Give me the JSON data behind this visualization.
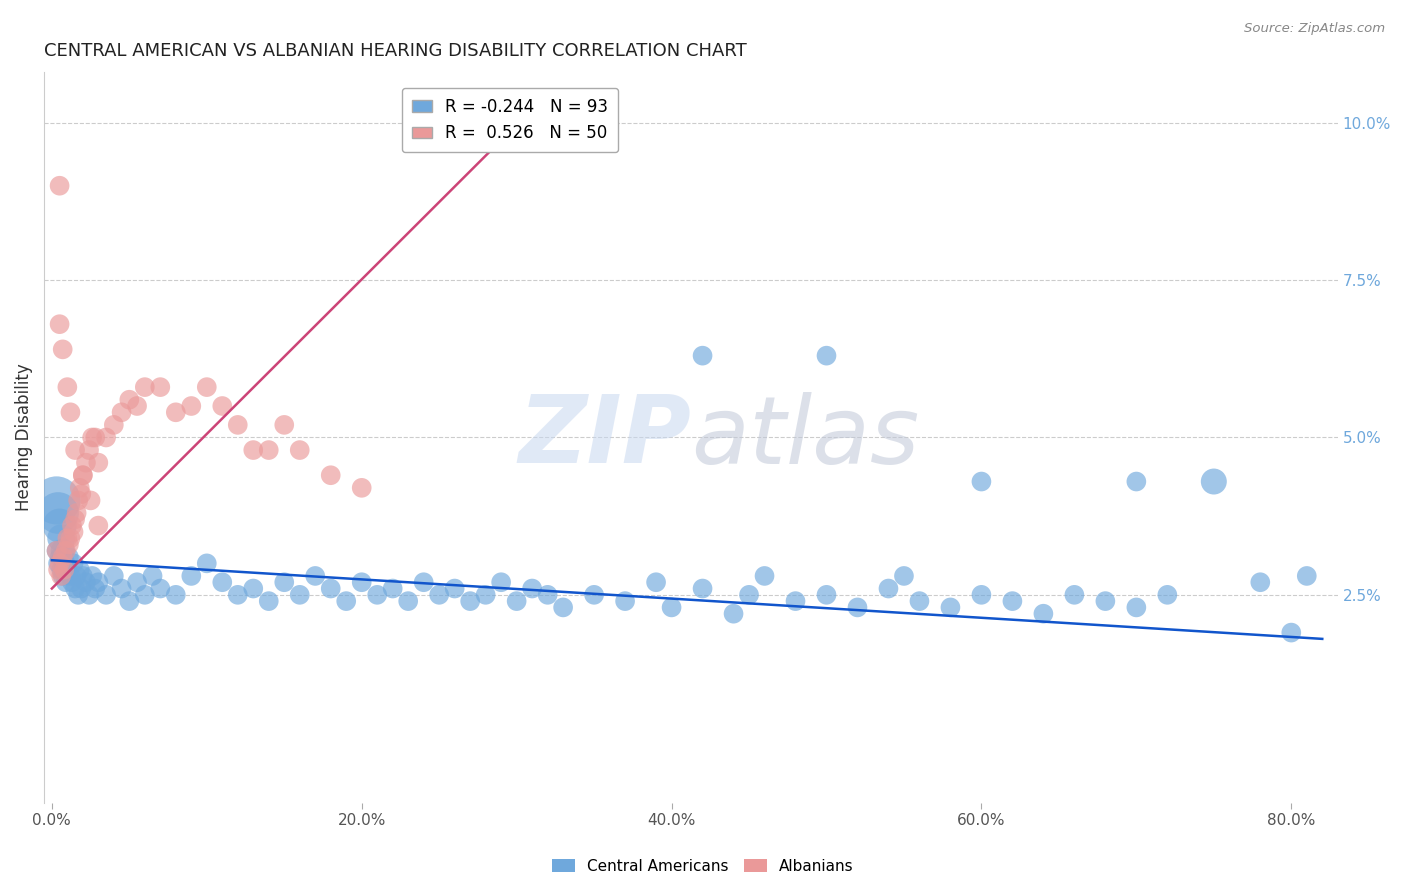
{
  "title": "CENTRAL AMERICAN VS ALBANIAN HEARING DISABILITY CORRELATION CHART",
  "source": "Source: ZipAtlas.com",
  "xlabel_ticks": [
    "0.0%",
    "20.0%",
    "40.0%",
    "60.0%",
    "80.0%"
  ],
  "xlabel_vals": [
    0.0,
    0.2,
    0.4,
    0.6,
    0.8
  ],
  "ylabel": "Hearing Disability",
  "right_yticks": [
    "10.0%",
    "7.5%",
    "5.0%",
    "2.5%"
  ],
  "right_ytick_vals": [
    0.1,
    0.075,
    0.05,
    0.025
  ],
  "xlim": [
    -0.005,
    0.83
  ],
  "ylim": [
    -0.008,
    0.108
  ],
  "blue_color": "#6fa8dc",
  "pink_color": "#ea9999",
  "blue_line_color": "#1155cc",
  "pink_line_color": "#cc4477",
  "legend_r_blue": "-0.244",
  "legend_n_blue": "93",
  "legend_r_pink": "0.526",
  "legend_n_pink": "50",
  "legend_label_blue": "Central Americans",
  "legend_label_pink": "Albanians",
  "watermark_zip": "ZIP",
  "watermark_atlas": "atlas",
  "background_color": "#ffffff",
  "grid_color": "#cccccc",
  "blue_trend_x": [
    0.0,
    0.82
  ],
  "blue_trend_y": [
    0.0305,
    0.018
  ],
  "pink_trend_x": [
    0.0,
    0.285
  ],
  "pink_trend_y": [
    0.026,
    0.096
  ],
  "blue_x": [
    0.003,
    0.004,
    0.005,
    0.006,
    0.007,
    0.008,
    0.009,
    0.01,
    0.011,
    0.012,
    0.013,
    0.014,
    0.015,
    0.016,
    0.017,
    0.018,
    0.019,
    0.02,
    0.022,
    0.024,
    0.026,
    0.028,
    0.03,
    0.035,
    0.04,
    0.045,
    0.05,
    0.055,
    0.06,
    0.065,
    0.07,
    0.08,
    0.09,
    0.1,
    0.11,
    0.12,
    0.13,
    0.14,
    0.15,
    0.16,
    0.17,
    0.18,
    0.19,
    0.2,
    0.21,
    0.22,
    0.23,
    0.24,
    0.25,
    0.26,
    0.27,
    0.28,
    0.29,
    0.3,
    0.31,
    0.32,
    0.33,
    0.35,
    0.37,
    0.39,
    0.4,
    0.42,
    0.44,
    0.45,
    0.46,
    0.48,
    0.5,
    0.52,
    0.54,
    0.55,
    0.56,
    0.58,
    0.6,
    0.62,
    0.64,
    0.66,
    0.68,
    0.7,
    0.72,
    0.75,
    0.78,
    0.8,
    0.81,
    0.003,
    0.004,
    0.005,
    0.006,
    0.007,
    0.008,
    0.42,
    0.5,
    0.6,
    0.7
  ],
  "blue_y": [
    0.032,
    0.03,
    0.031,
    0.029,
    0.028,
    0.03,
    0.027,
    0.029,
    0.031,
    0.028,
    0.027,
    0.03,
    0.026,
    0.028,
    0.025,
    0.029,
    0.026,
    0.028,
    0.027,
    0.025,
    0.028,
    0.026,
    0.027,
    0.025,
    0.028,
    0.026,
    0.024,
    0.027,
    0.025,
    0.028,
    0.026,
    0.025,
    0.028,
    0.03,
    0.027,
    0.025,
    0.026,
    0.024,
    0.027,
    0.025,
    0.028,
    0.026,
    0.024,
    0.027,
    0.025,
    0.026,
    0.024,
    0.027,
    0.025,
    0.026,
    0.024,
    0.025,
    0.027,
    0.024,
    0.026,
    0.025,
    0.023,
    0.025,
    0.024,
    0.027,
    0.023,
    0.026,
    0.022,
    0.025,
    0.028,
    0.024,
    0.025,
    0.023,
    0.026,
    0.028,
    0.024,
    0.023,
    0.025,
    0.024,
    0.022,
    0.025,
    0.024,
    0.023,
    0.025,
    0.043,
    0.027,
    0.019,
    0.028,
    0.04,
    0.038,
    0.036,
    0.034,
    0.032,
    0.03,
    0.063,
    0.063,
    0.043,
    0.043
  ],
  "blue_sizes": [
    200,
    200,
    200,
    200,
    200,
    200,
    200,
    200,
    200,
    200,
    200,
    200,
    200,
    200,
    200,
    200,
    200,
    200,
    200,
    200,
    200,
    200,
    200,
    200,
    200,
    200,
    200,
    200,
    200,
    200,
    200,
    200,
    200,
    200,
    200,
    200,
    200,
    200,
    200,
    200,
    200,
    200,
    200,
    200,
    200,
    200,
    200,
    200,
    200,
    200,
    200,
    200,
    200,
    200,
    200,
    200,
    200,
    200,
    200,
    200,
    200,
    200,
    200,
    200,
    200,
    200,
    200,
    200,
    200,
    200,
    200,
    200,
    200,
    200,
    200,
    200,
    200,
    200,
    200,
    350,
    200,
    200,
    200,
    1200,
    900,
    600,
    400,
    300,
    250,
    200,
    200,
    200,
    200
  ],
  "pink_x": [
    0.003,
    0.004,
    0.005,
    0.006,
    0.007,
    0.008,
    0.009,
    0.01,
    0.011,
    0.012,
    0.013,
    0.014,
    0.015,
    0.016,
    0.017,
    0.018,
    0.019,
    0.02,
    0.022,
    0.024,
    0.026,
    0.028,
    0.03,
    0.035,
    0.04,
    0.045,
    0.05,
    0.055,
    0.06,
    0.07,
    0.08,
    0.09,
    0.1,
    0.11,
    0.12,
    0.13,
    0.14,
    0.15,
    0.16,
    0.18,
    0.2,
    0.005,
    0.007,
    0.01,
    0.012,
    0.015,
    0.02,
    0.025,
    0.03,
    0.005
  ],
  "pink_y": [
    0.032,
    0.029,
    0.03,
    0.028,
    0.031,
    0.029,
    0.032,
    0.034,
    0.033,
    0.034,
    0.036,
    0.035,
    0.037,
    0.038,
    0.04,
    0.042,
    0.041,
    0.044,
    0.046,
    0.048,
    0.05,
    0.05,
    0.046,
    0.05,
    0.052,
    0.054,
    0.056,
    0.055,
    0.058,
    0.058,
    0.054,
    0.055,
    0.058,
    0.055,
    0.052,
    0.048,
    0.048,
    0.052,
    0.048,
    0.044,
    0.042,
    0.068,
    0.064,
    0.058,
    0.054,
    0.048,
    0.044,
    0.04,
    0.036,
    0.09
  ],
  "pink_sizes": [
    200,
    200,
    200,
    200,
    200,
    200,
    200,
    200,
    200,
    200,
    200,
    200,
    200,
    200,
    200,
    200,
    200,
    200,
    200,
    200,
    200,
    200,
    200,
    200,
    200,
    200,
    200,
    200,
    200,
    200,
    200,
    200,
    200,
    200,
    200,
    200,
    200,
    200,
    200,
    200,
    200,
    200,
    200,
    200,
    200,
    200,
    200,
    200,
    200,
    200
  ]
}
